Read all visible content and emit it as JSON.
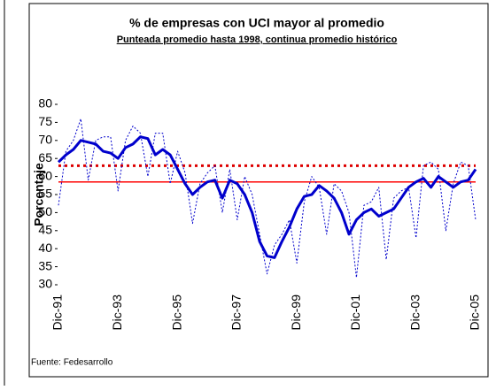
{
  "chart_data": {
    "type": "line",
    "title": "% de empresas con UCI mayor al promedio",
    "subtitle": "Punteada promedio hasta 1998, continua promedio histórico",
    "y_label": "Porcentaje",
    "source": "Fuente: Fedesarrollo",
    "categories": [
      "Dic-91",
      null,
      null,
      null,
      null,
      null,
      null,
      null,
      "Dic-93",
      null,
      null,
      null,
      null,
      null,
      null,
      null,
      "Dic-95",
      null,
      null,
      null,
      null,
      null,
      null,
      null,
      "Dic-97",
      null,
      null,
      null,
      null,
      null,
      null,
      null,
      "Dic-99",
      null,
      null,
      null,
      null,
      null,
      null,
      null,
      "Dic-01",
      null,
      null,
      null,
      null,
      null,
      null,
      null,
      "Dic-03",
      null,
      null,
      null,
      null,
      null,
      null,
      null,
      "Dic-05"
    ],
    "series": [
      {
        "color": "#0000cc",
        "style": "dotted",
        "values": [
          52,
          67,
          70,
          76,
          59,
          70,
          71,
          71,
          56,
          70,
          74,
          72,
          60,
          72,
          72,
          58,
          67,
          61,
          47,
          58,
          61,
          63,
          50,
          62,
          48,
          60,
          55,
          44,
          33,
          41,
          44,
          48,
          36,
          53,
          60,
          57,
          44,
          58,
          56,
          50,
          32,
          52,
          53,
          57,
          37,
          54,
          56,
          57,
          43,
          63,
          64,
          62,
          45,
          58,
          64,
          63,
          48
        ]
      },
      {
        "color": "#0000cc",
        "style": "thick",
        "values": [
          64,
          66,
          67.5,
          70,
          69.5,
          69,
          67,
          66.5,
          65,
          68,
          69,
          71,
          70.5,
          66,
          67.5,
          66,
          62,
          58,
          55,
          57,
          58.5,
          59,
          54,
          59,
          58,
          55,
          50,
          42,
          38,
          37.5,
          42,
          46,
          51,
          54.5,
          55,
          57.5,
          56,
          54,
          50,
          44,
          48,
          50,
          51,
          49,
          50,
          51,
          54,
          57,
          58.5,
          59.5,
          57,
          60,
          58.5,
          57,
          58.5,
          59,
          62
        ]
      }
    ],
    "hlines": [
      {
        "value": 63,
        "color": "#dd0000",
        "style": "dotted"
      },
      {
        "value": 58.5,
        "color": "#ff0000",
        "style": "solid"
      }
    ],
    "ylim": [
      30,
      80
    ],
    "yticks": [
      30,
      35,
      40,
      45,
      50,
      55,
      60,
      65,
      70,
      75,
      80
    ]
  }
}
